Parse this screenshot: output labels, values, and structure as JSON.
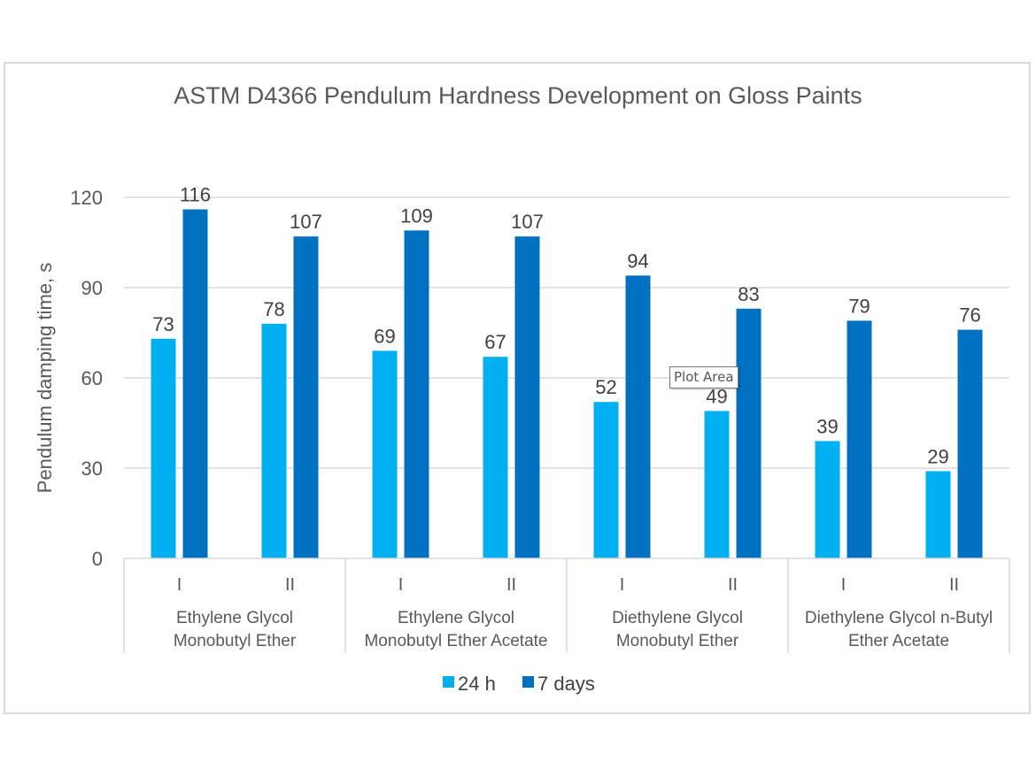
{
  "chart_data": {
    "type": "bar",
    "title": "ASTM D4366 Pendulum Hardness Development on Gloss Paints",
    "xlabel": "",
    "ylabel": "Pendulum damping time, s",
    "ylim": [
      0,
      120
    ],
    "yticks": [
      0,
      30,
      60,
      90,
      120
    ],
    "grid": true,
    "legend_position": "bottom",
    "groups": [
      {
        "name_lines": [
          "Ethylene Glycol",
          "Monobutyl Ether"
        ],
        "subcategories": [
          "I",
          "II"
        ]
      },
      {
        "name_lines": [
          "Ethylene Glycol",
          "Monobutyl Ether Acetate"
        ],
        "subcategories": [
          "I",
          "II"
        ]
      },
      {
        "name_lines": [
          "Diethylene Glycol",
          "Monobutyl Ether"
        ],
        "subcategories": [
          "I",
          "II"
        ]
      },
      {
        "name_lines": [
          "Diethylene Glycol n-Butyl",
          "Ether Acetate"
        ],
        "subcategories": [
          "I",
          "II"
        ]
      }
    ],
    "categories": [
      "Ethylene Glycol Monobutyl Ether - I",
      "Ethylene Glycol Monobutyl Ether - II",
      "Ethylene Glycol Monobutyl Ether Acetate - I",
      "Ethylene Glycol Monobutyl Ether Acetate - II",
      "Diethylene Glycol Monobutyl Ether - I",
      "Diethylene Glycol Monobutyl Ether - II",
      "Diethylene Glycol n-Butyl Ether Acetate - I",
      "Diethylene Glycol n-Butyl Ether Acetate - II"
    ],
    "series": [
      {
        "name": "24 h",
        "color": "#00b0f0",
        "values": [
          73,
          78,
          69,
          67,
          52,
          49,
          39,
          29
        ]
      },
      {
        "name": "7 days",
        "color": "#0070c0",
        "values": [
          116,
          107,
          109,
          107,
          94,
          83,
          79,
          76
        ]
      }
    ]
  },
  "tooltip": {
    "text": "Plot Area"
  }
}
